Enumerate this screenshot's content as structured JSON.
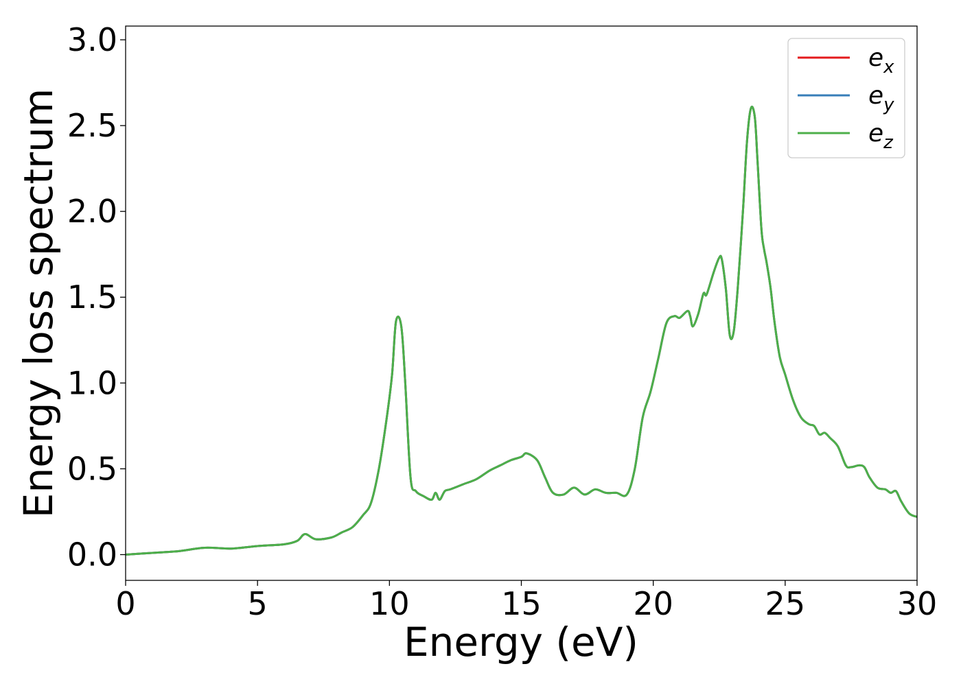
{
  "chart_data": {
    "type": "line",
    "xlabel": "Energy (eV)",
    "ylabel": "Energy loss spectrum",
    "xlim": [
      0,
      30
    ],
    "ylim": [
      -0.15,
      3.08
    ],
    "xticks": [
      0,
      5,
      10,
      15,
      20,
      25,
      30
    ],
    "yticks": [
      0.0,
      0.5,
      1.0,
      1.5,
      2.0,
      2.5,
      3.0
    ],
    "xtick_labels": [
      "0",
      "5",
      "10",
      "15",
      "20",
      "25",
      "30"
    ],
    "ytick_labels": [
      "0.0",
      "0.5",
      "1.0",
      "1.5",
      "2.0",
      "2.5",
      "3.0"
    ],
    "grid": false,
    "legend_position": "top-right",
    "x": [
      0,
      1,
      2,
      3,
      4,
      5,
      6,
      6.5,
      6.8,
      7.2,
      7.8,
      8.2,
      8.6,
      9.0,
      9.3,
      9.6,
      9.9,
      10.1,
      10.25,
      10.45,
      10.6,
      10.8,
      11.0,
      11.3,
      11.6,
      11.75,
      11.9,
      12.1,
      12.3,
      12.8,
      13.3,
      13.8,
      14.2,
      14.6,
      15.0,
      15.2,
      15.6,
      15.9,
      16.2,
      16.6,
      17.0,
      17.4,
      17.8,
      18.2,
      18.6,
      19.0,
      19.3,
      19.6,
      19.9,
      20.2,
      20.5,
      20.8,
      21.0,
      21.3,
      21.4,
      21.5,
      21.7,
      21.9,
      22.0,
      22.1,
      22.3,
      22.5,
      22.6,
      22.75,
      22.9,
      23.05,
      23.2,
      23.4,
      23.55,
      23.7,
      23.85,
      23.95,
      24.1,
      24.2,
      24.3,
      24.45,
      24.6,
      24.8,
      25.0,
      25.3,
      25.6,
      25.9,
      26.1,
      26.3,
      26.5,
      26.7,
      27.0,
      27.3,
      27.5,
      27.8,
      28.0,
      28.2,
      28.5,
      28.8,
      29.0,
      29.2,
      29.4,
      29.7,
      30.0
    ],
    "series": [
      {
        "name": "e_x",
        "legend_base": "e",
        "legend_sub": "x",
        "color": "#e41a1c",
        "values": [
          0.0,
          0.01,
          0.02,
          0.04,
          0.035,
          0.05,
          0.06,
          0.08,
          0.12,
          0.09,
          0.1,
          0.13,
          0.16,
          0.23,
          0.3,
          0.5,
          0.8,
          1.05,
          1.36,
          1.33,
          1.0,
          0.45,
          0.37,
          0.34,
          0.32,
          0.36,
          0.32,
          0.37,
          0.38,
          0.41,
          0.44,
          0.49,
          0.52,
          0.55,
          0.57,
          0.59,
          0.55,
          0.45,
          0.36,
          0.35,
          0.39,
          0.35,
          0.38,
          0.36,
          0.36,
          0.35,
          0.5,
          0.8,
          0.95,
          1.15,
          1.35,
          1.39,
          1.38,
          1.42,
          1.39,
          1.33,
          1.4,
          1.52,
          1.51,
          1.55,
          1.65,
          1.73,
          1.72,
          1.55,
          1.28,
          1.3,
          1.55,
          2.0,
          2.4,
          2.6,
          2.55,
          2.3,
          1.9,
          1.78,
          1.7,
          1.55,
          1.35,
          1.15,
          1.05,
          0.9,
          0.8,
          0.76,
          0.75,
          0.7,
          0.71,
          0.68,
          0.63,
          0.52,
          0.51,
          0.52,
          0.51,
          0.45,
          0.39,
          0.38,
          0.36,
          0.37,
          0.31,
          0.24,
          0.22
        ]
      },
      {
        "name": "e_y",
        "legend_base": "e",
        "legend_sub": "y",
        "color": "#377eb8",
        "values": [
          0.0,
          0.01,
          0.02,
          0.04,
          0.035,
          0.05,
          0.06,
          0.08,
          0.12,
          0.09,
          0.1,
          0.13,
          0.16,
          0.23,
          0.3,
          0.5,
          0.8,
          1.05,
          1.36,
          1.33,
          1.0,
          0.45,
          0.37,
          0.34,
          0.32,
          0.36,
          0.32,
          0.37,
          0.38,
          0.41,
          0.44,
          0.49,
          0.52,
          0.55,
          0.57,
          0.59,
          0.55,
          0.45,
          0.36,
          0.35,
          0.39,
          0.35,
          0.38,
          0.36,
          0.36,
          0.35,
          0.5,
          0.8,
          0.95,
          1.15,
          1.35,
          1.39,
          1.38,
          1.42,
          1.39,
          1.33,
          1.4,
          1.52,
          1.51,
          1.55,
          1.65,
          1.73,
          1.72,
          1.55,
          1.28,
          1.3,
          1.55,
          2.0,
          2.4,
          2.6,
          2.55,
          2.3,
          1.9,
          1.78,
          1.7,
          1.55,
          1.35,
          1.15,
          1.05,
          0.9,
          0.8,
          0.76,
          0.75,
          0.7,
          0.71,
          0.68,
          0.63,
          0.52,
          0.51,
          0.52,
          0.51,
          0.45,
          0.39,
          0.38,
          0.36,
          0.37,
          0.31,
          0.24,
          0.22
        ]
      },
      {
        "name": "e_z",
        "legend_base": "e",
        "legend_sub": "z",
        "color": "#4daf4a",
        "values": [
          0.0,
          0.01,
          0.02,
          0.04,
          0.035,
          0.05,
          0.06,
          0.08,
          0.12,
          0.09,
          0.1,
          0.13,
          0.16,
          0.23,
          0.3,
          0.5,
          0.8,
          1.05,
          1.36,
          1.33,
          1.0,
          0.45,
          0.37,
          0.34,
          0.32,
          0.36,
          0.32,
          0.37,
          0.38,
          0.41,
          0.44,
          0.49,
          0.52,
          0.55,
          0.57,
          0.59,
          0.55,
          0.45,
          0.36,
          0.35,
          0.39,
          0.35,
          0.38,
          0.36,
          0.36,
          0.35,
          0.5,
          0.8,
          0.95,
          1.15,
          1.35,
          1.39,
          1.38,
          1.42,
          1.39,
          1.33,
          1.4,
          1.52,
          1.51,
          1.55,
          1.65,
          1.73,
          1.72,
          1.55,
          1.28,
          1.3,
          1.55,
          2.0,
          2.4,
          2.6,
          2.55,
          2.3,
          1.9,
          1.78,
          1.7,
          1.55,
          1.35,
          1.15,
          1.05,
          0.9,
          0.8,
          0.76,
          0.75,
          0.7,
          0.71,
          0.68,
          0.63,
          0.52,
          0.51,
          0.52,
          0.51,
          0.45,
          0.39,
          0.38,
          0.36,
          0.37,
          0.31,
          0.24,
          0.22
        ]
      }
    ]
  }
}
